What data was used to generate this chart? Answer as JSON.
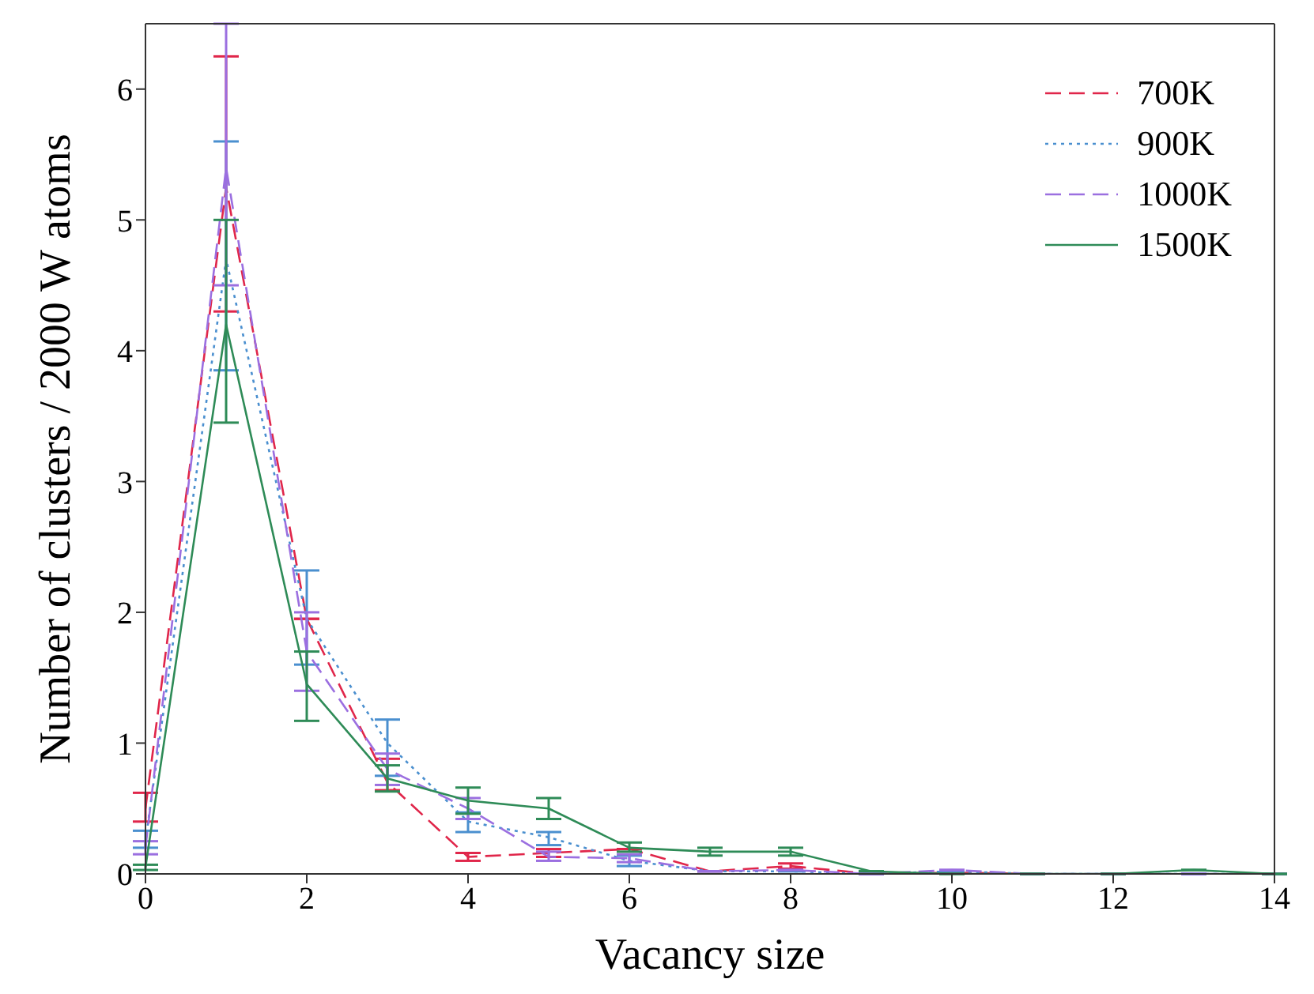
{
  "chart_data": {
    "type": "line",
    "xlabel": "Vacancy size",
    "ylabel": "Number of clusters / 2000 W atoms",
    "x": [
      0,
      1,
      2,
      3,
      4,
      5,
      6,
      7,
      8,
      9,
      10,
      11,
      12,
      13,
      14
    ],
    "xlim": [
      0,
      14
    ],
    "xticks": [
      0,
      2,
      4,
      6,
      8,
      10,
      12,
      14
    ],
    "ylim": [
      0,
      6.5
    ],
    "yticks": [
      0,
      1,
      2,
      3,
      4,
      5,
      6
    ],
    "grid": false,
    "legend": "top right",
    "marker": "none",
    "series": [
      {
        "name": "700K",
        "color": "#e0264a",
        "line_style": "dashed",
        "values": [
          0.5,
          5.25,
          1.95,
          0.7,
          0.13,
          0.16,
          0.19,
          0.02,
          0.06,
          0,
          0.01,
          0,
          null,
          null,
          null
        ],
        "errors": [
          [
            0.4,
            0.62
          ],
          [
            4.3,
            6.25
          ],
          null,
          [
            0.64,
            0.88
          ],
          [
            0.1,
            0.16
          ],
          [
            0.13,
            0.19
          ],
          null,
          null,
          [
            0.04,
            0.08
          ],
          null,
          null,
          null,
          null,
          null,
          null
        ]
      },
      {
        "name": "900K",
        "color": "#4a8fcf",
        "line_style": "dotted",
        "values": [
          0.25,
          4.7,
          1.95,
          1.0,
          0.4,
          0.28,
          0.1,
          0.02,
          0.02,
          0,
          0.02,
          0,
          0,
          0,
          0
        ],
        "errors": [
          [
            0.2,
            0.33
          ],
          [
            3.85,
            5.6
          ],
          [
            1.6,
            2.32
          ],
          [
            0.75,
            1.18
          ],
          [
            0.32,
            0.47
          ],
          [
            0.22,
            0.32
          ],
          [
            0.06,
            0.14
          ],
          null,
          null,
          null,
          null,
          null,
          null,
          null,
          null
        ]
      },
      {
        "name": "1000K",
        "color": "#9b6fe0",
        "line_style": "dashed",
        "values": [
          0.2,
          5.4,
          1.7,
          0.8,
          0.5,
          0.13,
          0.12,
          0.02,
          0.03,
          0,
          0.03,
          0,
          0,
          0,
          0
        ],
        "errors": [
          [
            0.15,
            0.25
          ],
          [
            4.5,
            6.5
          ],
          [
            1.4,
            2.0
          ],
          [
            0.68,
            0.92
          ],
          [
            0.42,
            0.58
          ],
          [
            0.1,
            0.17
          ],
          [
            0.09,
            0.15
          ],
          null,
          null,
          null,
          null,
          null,
          null,
          null,
          null
        ]
      },
      {
        "name": "1500K",
        "color": "#2e8b57",
        "line_style": "solid",
        "values": [
          0.05,
          4.2,
          1.45,
          0.73,
          0.56,
          0.5,
          0.2,
          0.17,
          0.17,
          0.02,
          0,
          0,
          0,
          0.03,
          0
        ],
        "errors": [
          [
            0.03,
            0.07
          ],
          [
            3.45,
            5.0
          ],
          [
            1.17,
            1.7
          ],
          [
            0.63,
            0.83
          ],
          [
            0.46,
            0.66
          ],
          [
            0.42,
            0.58
          ],
          [
            0.17,
            0.24
          ],
          [
            0.14,
            0.2
          ],
          [
            0.14,
            0.2
          ],
          null,
          null,
          null,
          null,
          null,
          null
        ]
      }
    ]
  }
}
